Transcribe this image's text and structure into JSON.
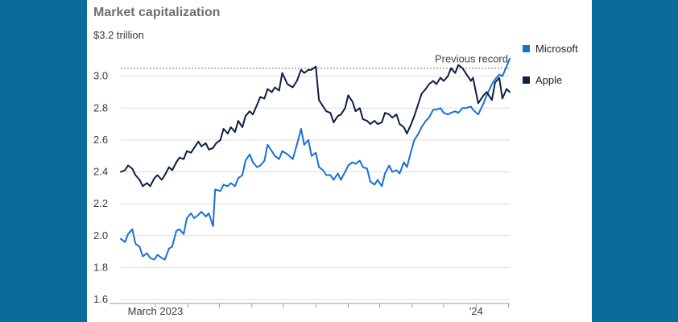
{
  "chart_data": {
    "type": "line",
    "title": "Market capitalization",
    "ylabel": "$3.2 trillion",
    "ylim": [
      1.6,
      3.2
    ],
    "yticks": [
      1.6,
      1.8,
      2.0,
      2.2,
      2.4,
      2.6,
      2.8,
      3.0
    ],
    "xlim": [
      "2023-01-27",
      "2024-02-02"
    ],
    "xtick_positions": [
      "2023-03-01",
      "2023-04-01",
      "2023-05-01",
      "2023-06-01",
      "2023-07-01",
      "2023-08-01",
      "2023-09-01",
      "2023-10-01",
      "2023-11-01",
      "2023-12-01",
      "2024-01-01",
      "2024-02-01"
    ],
    "xtick_labels": [
      {
        "date": "2023-03-01",
        "label": "March 2023"
      },
      {
        "date": "2024-01-01",
        "label": "'24"
      }
    ],
    "annotation": {
      "label": "Previous record",
      "y": 3.05
    },
    "grid": true,
    "legend_position": "right",
    "series": [
      {
        "name": "Microsoft",
        "color": "#1a6fd6",
        "points": [
          [
            "2023-01-27",
            1.98
          ],
          [
            "2023-01-31",
            1.96
          ],
          [
            "2023-02-03",
            2.01
          ],
          [
            "2023-02-07",
            2.04
          ],
          [
            "2023-02-10",
            1.95
          ],
          [
            "2023-02-14",
            1.93
          ],
          [
            "2023-02-17",
            1.87
          ],
          [
            "2023-02-21",
            1.89
          ],
          [
            "2023-02-24",
            1.86
          ],
          [
            "2023-02-28",
            1.85
          ],
          [
            "2023-03-03",
            1.88
          ],
          [
            "2023-03-07",
            1.86
          ],
          [
            "2023-03-10",
            1.85
          ],
          [
            "2023-03-14",
            1.92
          ],
          [
            "2023-03-17",
            1.93
          ],
          [
            "2023-03-21",
            2.03
          ],
          [
            "2023-03-24",
            2.04
          ],
          [
            "2023-03-28",
            2.01
          ],
          [
            "2023-03-31",
            2.11
          ],
          [
            "2023-04-04",
            2.14
          ],
          [
            "2023-04-07",
            2.11
          ],
          [
            "2023-04-11",
            2.13
          ],
          [
            "2023-04-14",
            2.15
          ],
          [
            "2023-04-18",
            2.12
          ],
          [
            "2023-04-21",
            2.14
          ],
          [
            "2023-04-25",
            2.06
          ],
          [
            "2023-04-27",
            2.29
          ],
          [
            "2023-05-02",
            2.28
          ],
          [
            "2023-05-05",
            2.32
          ],
          [
            "2023-05-09",
            2.31
          ],
          [
            "2023-05-12",
            2.33
          ],
          [
            "2023-05-16",
            2.31
          ],
          [
            "2023-05-19",
            2.36
          ],
          [
            "2023-05-23",
            2.38
          ],
          [
            "2023-05-26",
            2.47
          ],
          [
            "2023-05-30",
            2.51
          ],
          [
            "2023-06-02",
            2.46
          ],
          [
            "2023-06-06",
            2.43
          ],
          [
            "2023-06-09",
            2.44
          ],
          [
            "2023-06-13",
            2.47
          ],
          [
            "2023-06-16",
            2.57
          ],
          [
            "2023-06-20",
            2.53
          ],
          [
            "2023-06-23",
            2.5
          ],
          [
            "2023-06-27",
            2.48
          ],
          [
            "2023-06-30",
            2.53
          ],
          [
            "2023-07-05",
            2.51
          ],
          [
            "2023-07-10",
            2.48
          ],
          [
            "2023-07-14",
            2.57
          ],
          [
            "2023-07-18",
            2.67
          ],
          [
            "2023-07-21",
            2.57
          ],
          [
            "2023-07-25",
            2.6
          ],
          [
            "2023-07-28",
            2.5
          ],
          [
            "2023-08-01",
            2.52
          ],
          [
            "2023-08-04",
            2.43
          ],
          [
            "2023-08-08",
            2.41
          ],
          [
            "2023-08-11",
            2.38
          ],
          [
            "2023-08-15",
            2.38
          ],
          [
            "2023-08-18",
            2.35
          ],
          [
            "2023-08-22",
            2.39
          ],
          [
            "2023-08-25",
            2.35
          ],
          [
            "2023-08-29",
            2.4
          ],
          [
            "2023-09-01",
            2.44
          ],
          [
            "2023-09-05",
            2.46
          ],
          [
            "2023-09-08",
            2.45
          ],
          [
            "2023-09-12",
            2.47
          ],
          [
            "2023-09-15",
            2.43
          ],
          [
            "2023-09-19",
            2.42
          ],
          [
            "2023-09-22",
            2.34
          ],
          [
            "2023-09-26",
            2.32
          ],
          [
            "2023-09-29",
            2.35
          ],
          [
            "2023-10-03",
            2.31
          ],
          [
            "2023-10-06",
            2.39
          ],
          [
            "2023-10-10",
            2.44
          ],
          [
            "2023-10-13",
            2.4
          ],
          [
            "2023-10-17",
            2.41
          ],
          [
            "2023-10-20",
            2.39
          ],
          [
            "2023-10-24",
            2.46
          ],
          [
            "2023-10-27",
            2.43
          ],
          [
            "2023-10-31",
            2.53
          ],
          [
            "2023-11-03",
            2.6
          ],
          [
            "2023-11-07",
            2.64
          ],
          [
            "2023-11-10",
            2.68
          ],
          [
            "2023-11-14",
            2.72
          ],
          [
            "2023-11-17",
            2.74
          ],
          [
            "2023-11-21",
            2.79
          ],
          [
            "2023-11-24",
            2.79
          ],
          [
            "2023-11-28",
            2.8
          ],
          [
            "2023-12-01",
            2.77
          ],
          [
            "2023-12-05",
            2.76
          ],
          [
            "2023-12-08",
            2.77
          ],
          [
            "2023-12-12",
            2.78
          ],
          [
            "2023-12-15",
            2.77
          ],
          [
            "2023-12-19",
            2.8
          ],
          [
            "2023-12-22",
            2.8
          ],
          [
            "2023-12-27",
            2.81
          ],
          [
            "2023-12-29",
            2.79
          ],
          [
            "2024-01-03",
            2.76
          ],
          [
            "2024-01-08",
            2.83
          ],
          [
            "2024-01-11",
            2.88
          ],
          [
            "2024-01-16",
            2.95
          ],
          [
            "2024-01-19",
            2.98
          ],
          [
            "2024-01-23",
            3.01
          ],
          [
            "2024-01-26",
            3.0
          ],
          [
            "2024-01-30",
            3.06
          ],
          [
            "2024-02-02",
            3.11
          ]
        ]
      },
      {
        "name": "Apple",
        "color": "#0c1f44",
        "points": [
          [
            "2023-01-27",
            2.4
          ],
          [
            "2023-01-31",
            2.41
          ],
          [
            "2023-02-03",
            2.44
          ],
          [
            "2023-02-07",
            2.42
          ],
          [
            "2023-02-10",
            2.38
          ],
          [
            "2023-02-14",
            2.35
          ],
          [
            "2023-02-17",
            2.31
          ],
          [
            "2023-02-21",
            2.33
          ],
          [
            "2023-02-24",
            2.31
          ],
          [
            "2023-02-28",
            2.36
          ],
          [
            "2023-03-03",
            2.38
          ],
          [
            "2023-03-07",
            2.35
          ],
          [
            "2023-03-10",
            2.38
          ],
          [
            "2023-03-14",
            2.43
          ],
          [
            "2023-03-17",
            2.41
          ],
          [
            "2023-03-21",
            2.46
          ],
          [
            "2023-03-24",
            2.49
          ],
          [
            "2023-03-28",
            2.48
          ],
          [
            "2023-03-31",
            2.53
          ],
          [
            "2023-04-04",
            2.52
          ],
          [
            "2023-04-07",
            2.55
          ],
          [
            "2023-04-11",
            2.59
          ],
          [
            "2023-04-14",
            2.56
          ],
          [
            "2023-04-18",
            2.58
          ],
          [
            "2023-04-21",
            2.54
          ],
          [
            "2023-04-25",
            2.55
          ],
          [
            "2023-04-28",
            2.58
          ],
          [
            "2023-05-02",
            2.6
          ],
          [
            "2023-05-05",
            2.67
          ],
          [
            "2023-05-09",
            2.64
          ],
          [
            "2023-05-12",
            2.68
          ],
          [
            "2023-05-16",
            2.65
          ],
          [
            "2023-05-19",
            2.72
          ],
          [
            "2023-05-23",
            2.68
          ],
          [
            "2023-05-26",
            2.75
          ],
          [
            "2023-05-30",
            2.78
          ],
          [
            "2023-06-02",
            2.76
          ],
          [
            "2023-06-06",
            2.82
          ],
          [
            "2023-06-09",
            2.87
          ],
          [
            "2023-06-13",
            2.86
          ],
          [
            "2023-06-16",
            2.92
          ],
          [
            "2023-06-20",
            2.9
          ],
          [
            "2023-06-23",
            2.93
          ],
          [
            "2023-06-27",
            2.91
          ],
          [
            "2023-06-30",
            3.02
          ],
          [
            "2023-07-05",
            2.95
          ],
          [
            "2023-07-10",
            2.93
          ],
          [
            "2023-07-14",
            2.97
          ],
          [
            "2023-07-18",
            3.04
          ],
          [
            "2023-07-21",
            3.02
          ],
          [
            "2023-07-25",
            3.04
          ],
          [
            "2023-07-28",
            3.04
          ],
          [
            "2023-08-01",
            3.06
          ],
          [
            "2023-08-04",
            2.85
          ],
          [
            "2023-08-08",
            2.81
          ],
          [
            "2023-08-11",
            2.78
          ],
          [
            "2023-08-15",
            2.77
          ],
          [
            "2023-08-18",
            2.71
          ],
          [
            "2023-08-22",
            2.75
          ],
          [
            "2023-08-25",
            2.76
          ],
          [
            "2023-08-29",
            2.8
          ],
          [
            "2023-09-01",
            2.88
          ],
          [
            "2023-09-05",
            2.84
          ],
          [
            "2023-09-08",
            2.78
          ],
          [
            "2023-09-12",
            2.8
          ],
          [
            "2023-09-15",
            2.73
          ],
          [
            "2023-09-19",
            2.72
          ],
          [
            "2023-09-22",
            2.7
          ],
          [
            "2023-09-26",
            2.72
          ],
          [
            "2023-09-29",
            2.7
          ],
          [
            "2023-10-03",
            2.71
          ],
          [
            "2023-10-06",
            2.77
          ],
          [
            "2023-10-10",
            2.76
          ],
          [
            "2023-10-13",
            2.74
          ],
          [
            "2023-10-17",
            2.76
          ],
          [
            "2023-10-20",
            2.7
          ],
          [
            "2023-10-24",
            2.68
          ],
          [
            "2023-10-27",
            2.64
          ],
          [
            "2023-10-31",
            2.7
          ],
          [
            "2023-11-03",
            2.75
          ],
          [
            "2023-11-07",
            2.83
          ],
          [
            "2023-11-10",
            2.89
          ],
          [
            "2023-11-14",
            2.92
          ],
          [
            "2023-11-17",
            2.95
          ],
          [
            "2023-11-21",
            2.97
          ],
          [
            "2023-11-24",
            2.95
          ],
          [
            "2023-11-28",
            2.99
          ],
          [
            "2023-12-01",
            2.97
          ],
          [
            "2023-12-05",
            3.0
          ],
          [
            "2023-12-08",
            3.05
          ],
          [
            "2023-12-12",
            3.02
          ],
          [
            "2023-12-15",
            3.07
          ],
          [
            "2023-12-19",
            3.05
          ],
          [
            "2023-12-22",
            3.02
          ],
          [
            "2023-12-27",
            2.97
          ],
          [
            "2023-12-29",
            2.99
          ],
          [
            "2024-01-03",
            2.83
          ],
          [
            "2024-01-08",
            2.88
          ],
          [
            "2024-01-11",
            2.9
          ],
          [
            "2024-01-16",
            2.85
          ],
          [
            "2024-01-19",
            2.96
          ],
          [
            "2024-01-23",
            2.99
          ],
          [
            "2024-01-26",
            2.86
          ],
          [
            "2024-01-30",
            2.92
          ],
          [
            "2024-02-02",
            2.9
          ]
        ]
      }
    ]
  }
}
